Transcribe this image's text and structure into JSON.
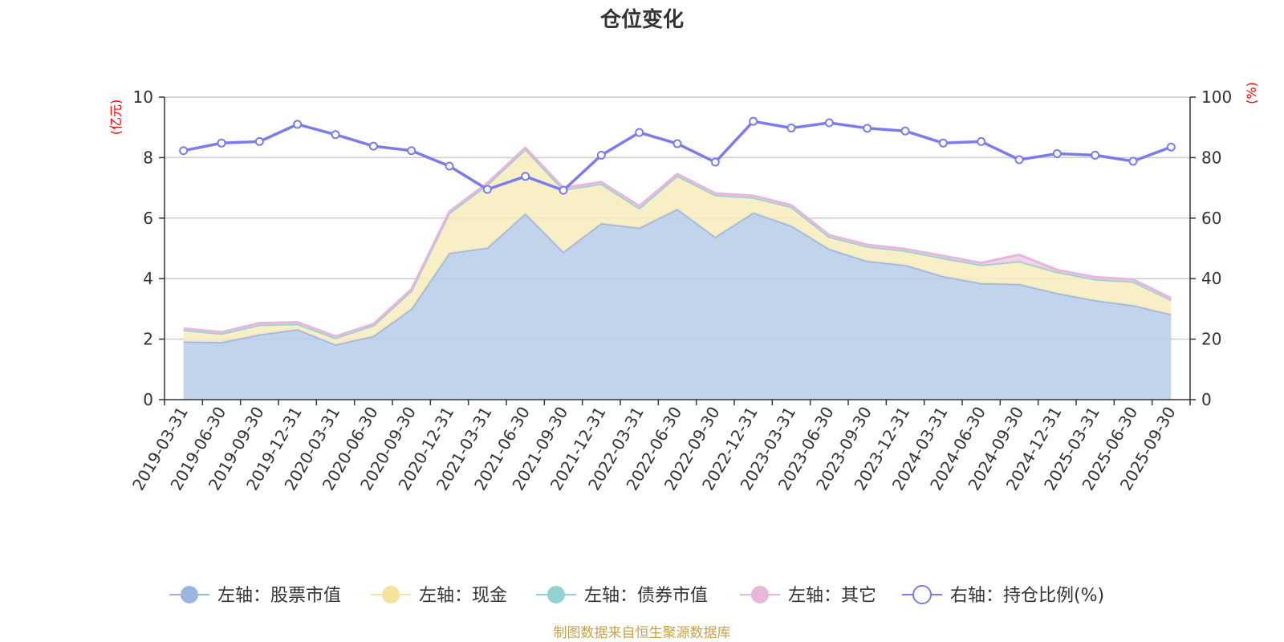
{
  "chart_data": {
    "type": "area",
    "title": "仓位变化",
    "left_axis_unit": "(亿元)",
    "right_axis_unit": "(%)",
    "ylim_left": [
      0,
      10
    ],
    "ylim_right": [
      0,
      100
    ],
    "left_ticks": [
      "0",
      "2",
      "4",
      "6",
      "8",
      "10"
    ],
    "right_ticks": [
      "0",
      "20",
      "40",
      "60",
      "80",
      "100"
    ],
    "categories": [
      "2019-03-31",
      "2019-06-30",
      "2019-09-30",
      "2019-12-31",
      "2020-03-31",
      "2020-06-30",
      "2020-09-30",
      "2020-12-31",
      "2021-03-31",
      "2021-06-30",
      "2021-09-30",
      "2021-12-31",
      "2022-03-31",
      "2022-06-30",
      "2022-09-30",
      "2022-12-31",
      "2023-03-31",
      "2023-06-30",
      "2023-09-30",
      "2023-12-31",
      "2024-03-31",
      "2024-06-30",
      "2024-09-30",
      "2024-12-31",
      "2025-03-31",
      "2025-06-30",
      "2025-09-30"
    ],
    "series": [
      {
        "name": "左轴：股票市值",
        "axis": "left",
        "color": "#9ab5df",
        "fill": "#b7cbe9",
        "values": [
          1.92,
          1.9,
          2.15,
          2.32,
          1.82,
          2.1,
          3.0,
          4.85,
          5.02,
          6.15,
          4.88,
          5.83,
          5.68,
          6.3,
          5.38,
          6.18,
          5.75,
          4.98,
          4.58,
          4.45,
          4.08,
          3.85,
          3.82,
          3.52,
          3.28,
          3.12,
          2.82
        ]
      },
      {
        "name": "左轴：现金",
        "axis": "left",
        "color": "#f6e29c",
        "fill": "#f8ecbd",
        "values": [
          0.38,
          0.28,
          0.32,
          0.18,
          0.22,
          0.35,
          0.6,
          1.32,
          2.08,
          2.13,
          2.06,
          1.3,
          0.65,
          1.1,
          1.38,
          0.5,
          0.62,
          0.4,
          0.48,
          0.47,
          0.6,
          0.6,
          0.75,
          0.7,
          0.7,
          0.78,
          0.48
        ]
      },
      {
        "name": "左轴：债券市值",
        "axis": "left",
        "color": "#93d2d2",
        "fill": "#b4e0e0",
        "values": [
          0,
          0,
          0,
          0,
          0,
          0,
          0,
          0,
          0,
          0,
          0,
          0,
          0,
          0,
          0,
          0,
          0,
          0,
          0,
          0,
          0,
          0,
          0,
          0,
          0,
          0,
          0
        ]
      },
      {
        "name": "左轴：其它",
        "axis": "left",
        "color": "#e7b6db",
        "fill": "#f0cde8",
        "values": [
          0.05,
          0.05,
          0.06,
          0.06,
          0.05,
          0.05,
          0.05,
          0.05,
          0.06,
          0.05,
          0.06,
          0.06,
          0.07,
          0.06,
          0.06,
          0.06,
          0.06,
          0.06,
          0.06,
          0.06,
          0.07,
          0.07,
          0.22,
          0.07,
          0.07,
          0.07,
          0.06
        ]
      },
      {
        "name": "右轴：持仓比例(%)",
        "axis": "right",
        "type": "line",
        "color": "#7b7bf0",
        "values": [
          82.3,
          84.8,
          85.3,
          91.0,
          87.6,
          83.8,
          82.3,
          77.2,
          69.5,
          73.8,
          69.2,
          80.8,
          88.3,
          84.6,
          78.5,
          92.0,
          89.8,
          91.5,
          89.7,
          88.8,
          84.8,
          85.3,
          79.3,
          81.3,
          80.8,
          78.8,
          83.5
        ]
      }
    ],
    "legend_position": "bottom"
  },
  "source_text": "制图数据来自恒生聚源数据库",
  "colors": {
    "axis": "#333333",
    "grid": "#cccccc",
    "unit_label": "#ff0000",
    "source_text": "#c8a24a"
  }
}
